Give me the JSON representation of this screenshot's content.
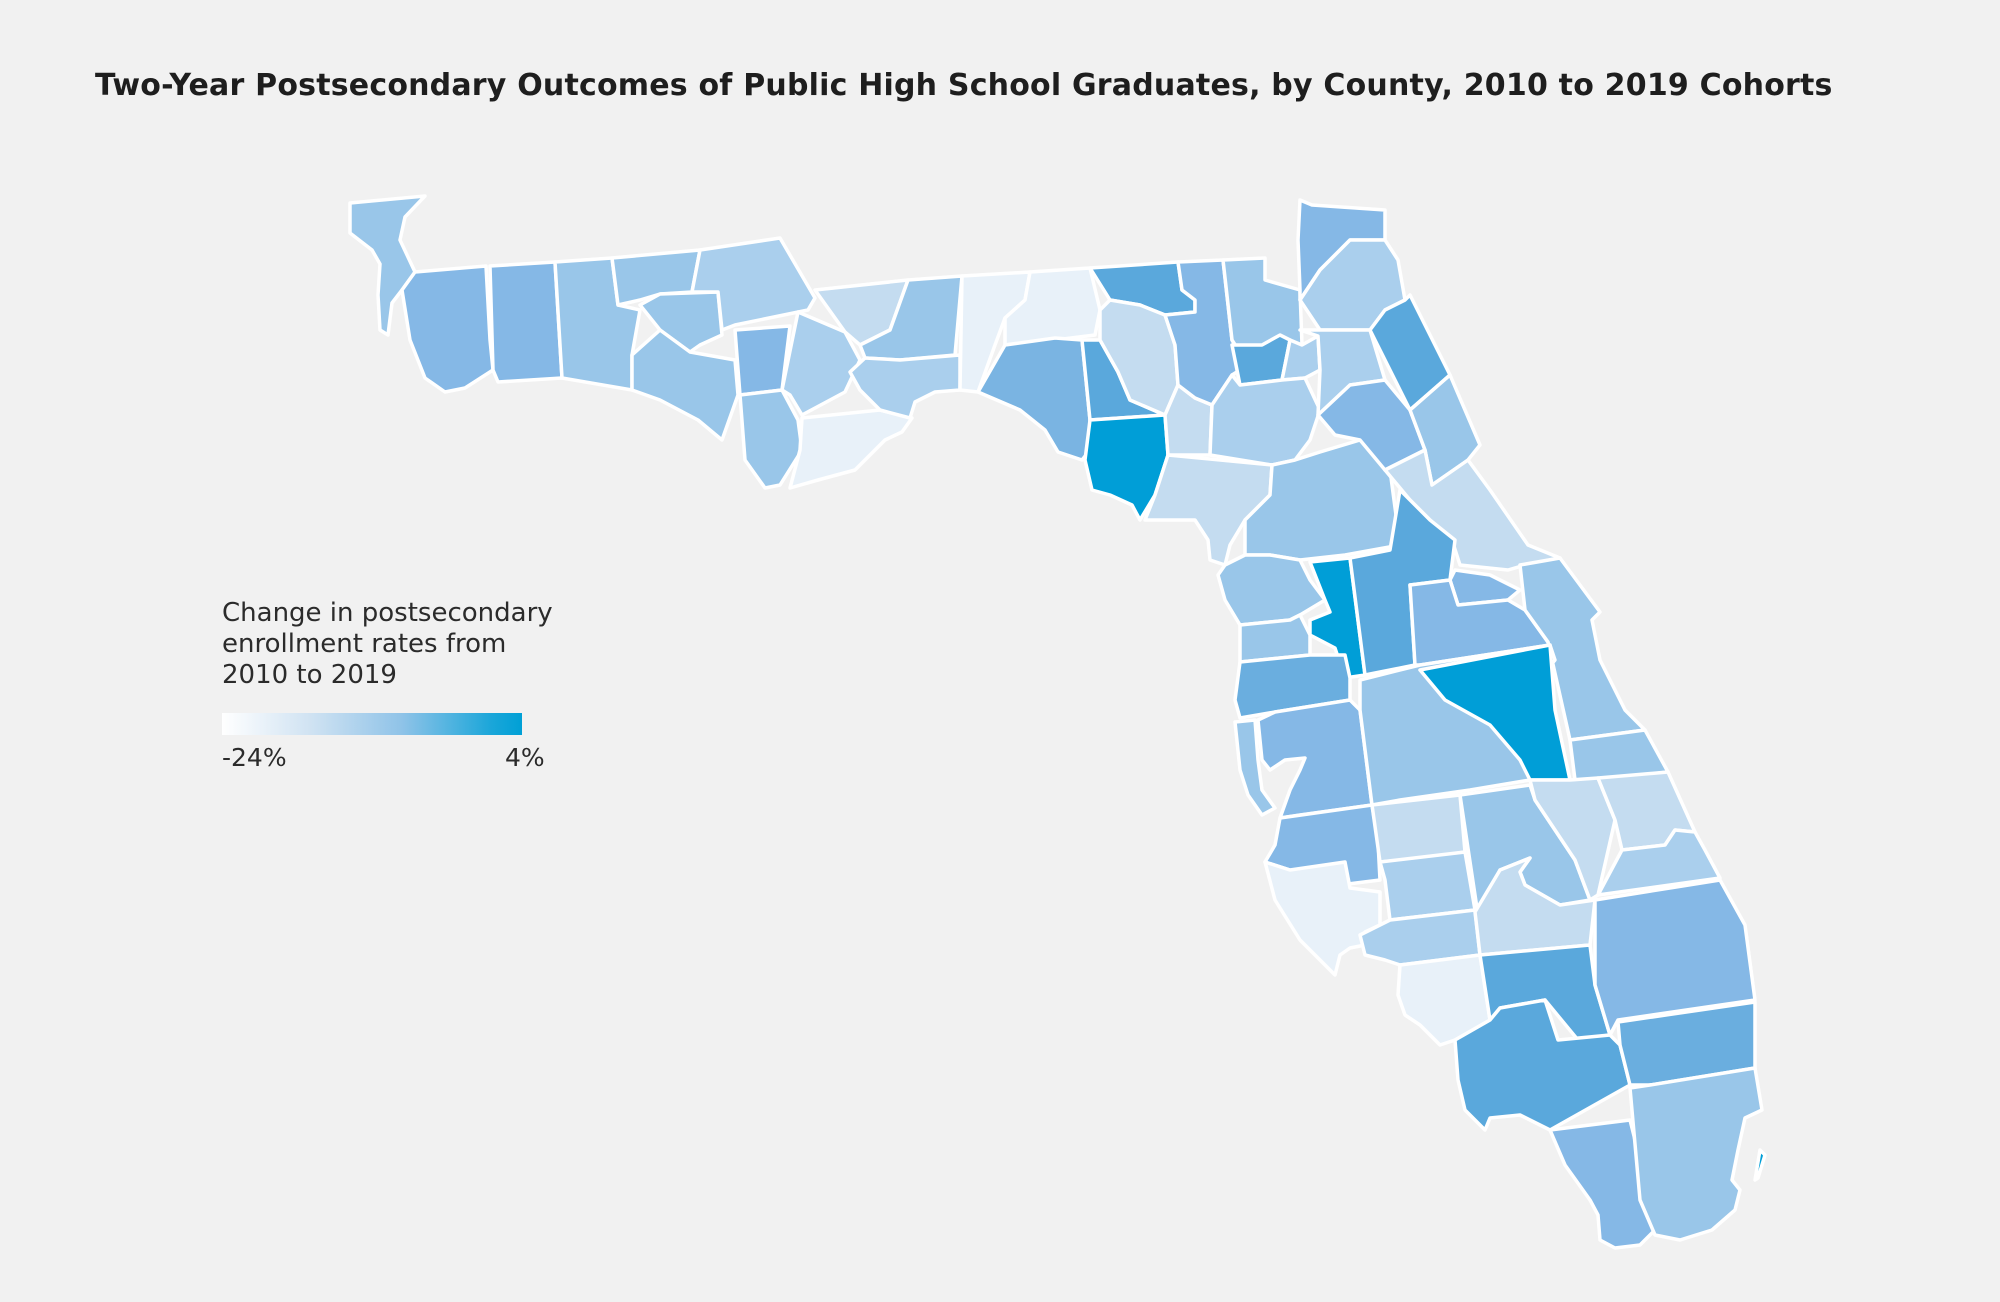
{
  "title": "Two-Year Postsecondary Outcomes of Public High School Graduates, by County, 2010 to 2019 Cohorts",
  "legend": {
    "title_line1": "Change in postsecondary",
    "title_line2": "enrollment rates from",
    "title_line3": "2010 to 2019",
    "min_label": "-24%",
    "max_label": "4%"
  },
  "colors": {
    "background": "#f1f1f1",
    "county_border": "#ffffff",
    "scale_low": "#ffffff",
    "scale_high": "#00a0d6",
    "shade_very_light": "#e8f1f9",
    "shade_light": "#c4dcf0",
    "shade_mid_light": "#aacfed",
    "shade_mid": "#99c6e9",
    "shade_mid_dark": "#85b8e6",
    "shade_dark": "#5aa8dc",
    "shade_darkest": "#009ed7"
  }
}
